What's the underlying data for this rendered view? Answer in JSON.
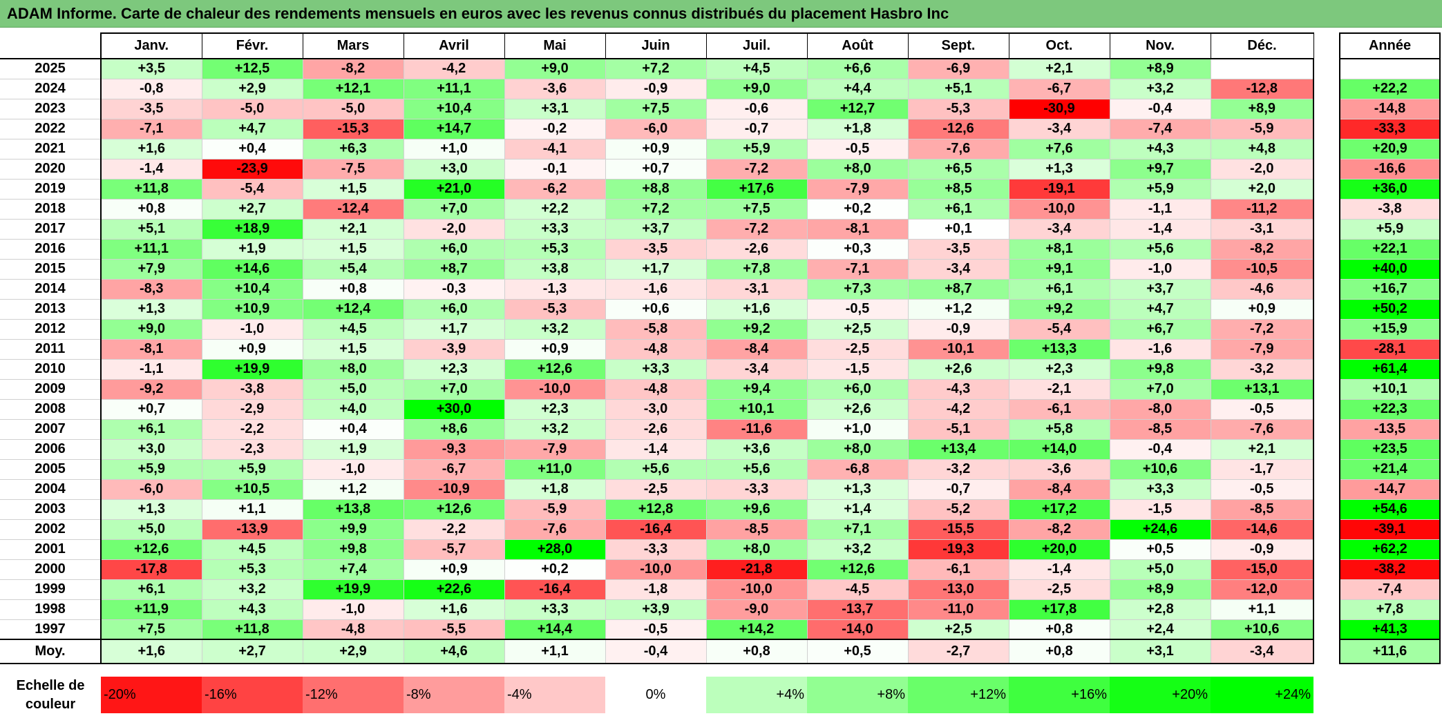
{
  "title": "ADAM Informe. Carte de chaleur des rendements mensuels en euros avec les revenus connus distribués du placement Hasbro Inc",
  "chart_data": {
    "type": "heatmap",
    "months": [
      "Janv.",
      "Févr.",
      "Mars",
      "Avril",
      "Mai",
      "Juin",
      "Juil.",
      "Août",
      "Sept.",
      "Oct.",
      "Nov.",
      "Déc."
    ],
    "year_header": "Année",
    "avg_label": "Moy.",
    "rows": [
      {
        "year": "2025",
        "values": [
          "+3,5",
          "+12,5",
          "-8,2",
          "-4,2",
          "+9,0",
          "+7,2",
          "+4,5",
          "+6,6",
          "-6,9",
          "+2,1",
          "+8,9",
          ""
        ],
        "annual": ""
      },
      {
        "year": "2024",
        "values": [
          "-0,8",
          "+2,9",
          "+12,1",
          "+11,1",
          "-3,6",
          "-0,9",
          "+9,0",
          "+4,4",
          "+5,1",
          "-6,7",
          "+3,2",
          "-12,8"
        ],
        "annual": "+22,2"
      },
      {
        "year": "2023",
        "values": [
          "-3,5",
          "-5,0",
          "-5,0",
          "+10,4",
          "+3,1",
          "+7,5",
          "-0,6",
          "+12,7",
          "-5,3",
          "-30,9",
          "-0,4",
          "+8,9"
        ],
        "annual": "-14,8"
      },
      {
        "year": "2022",
        "values": [
          "-7,1",
          "+4,7",
          "-15,3",
          "+14,7",
          "-0,2",
          "-6,0",
          "-0,7",
          "+1,8",
          "-12,6",
          "-3,4",
          "-7,4",
          "-5,9"
        ],
        "annual": "-33,3"
      },
      {
        "year": "2021",
        "values": [
          "+1,6",
          "+0,4",
          "+6,3",
          "+1,0",
          "-4,1",
          "+0,9",
          "+5,9",
          "-0,5",
          "-7,6",
          "+7,6",
          "+4,3",
          "+4,8"
        ],
        "annual": "+20,9"
      },
      {
        "year": "2020",
        "values": [
          "-1,4",
          "-23,9",
          "-7,5",
          "+3,0",
          "-0,1",
          "+0,7",
          "-7,2",
          "+8,0",
          "+6,5",
          "+1,3",
          "+9,7",
          "-2,0"
        ],
        "annual": "-16,6"
      },
      {
        "year": "2019",
        "values": [
          "+11,8",
          "-5,4",
          "+1,5",
          "+21,0",
          "-6,2",
          "+8,8",
          "+17,6",
          "-7,9",
          "+8,5",
          "-19,1",
          "+5,9",
          "+2,0"
        ],
        "annual": "+36,0"
      },
      {
        "year": "2018",
        "values": [
          "+0,8",
          "+2,7",
          "-12,4",
          "+7,0",
          "+2,2",
          "+7,2",
          "+7,5",
          "+0,2",
          "+6,1",
          "-10,0",
          "-1,1",
          "-11,2"
        ],
        "annual": "-3,8"
      },
      {
        "year": "2017",
        "values": [
          "+5,1",
          "+18,9",
          "+2,1",
          "-2,0",
          "+3,3",
          "+3,7",
          "-7,2",
          "-8,1",
          "+0,1",
          "-3,4",
          "-1,4",
          "-3,1"
        ],
        "annual": "+5,9"
      },
      {
        "year": "2016",
        "values": [
          "+11,1",
          "+1,9",
          "+1,5",
          "+6,0",
          "+5,3",
          "-3,5",
          "-2,6",
          "+0,3",
          "-3,5",
          "+8,1",
          "+5,6",
          "-8,2"
        ],
        "annual": "+22,1"
      },
      {
        "year": "2015",
        "values": [
          "+7,9",
          "+14,6",
          "+5,4",
          "+8,7",
          "+3,8",
          "+1,7",
          "+7,8",
          "-7,1",
          "-3,4",
          "+9,1",
          "-1,0",
          "-10,5"
        ],
        "annual": "+40,0"
      },
      {
        "year": "2014",
        "values": [
          "-8,3",
          "+10,4",
          "+0,8",
          "-0,3",
          "-1,3",
          "-1,6",
          "-3,1",
          "+7,3",
          "+8,7",
          "+6,1",
          "+3,7",
          "-4,6"
        ],
        "annual": "+16,7"
      },
      {
        "year": "2013",
        "values": [
          "+1,3",
          "+10,9",
          "+12,4",
          "+6,0",
          "-5,3",
          "+0,6",
          "+1,6",
          "-0,5",
          "+1,2",
          "+9,2",
          "+4,7",
          "+0,9"
        ],
        "annual": "+50,2"
      },
      {
        "year": "2012",
        "values": [
          "+9,0",
          "-1,0",
          "+4,5",
          "+1,7",
          "+3,2",
          "-5,8",
          "+9,2",
          "+2,5",
          "-0,9",
          "-5,4",
          "+6,7",
          "-7,2"
        ],
        "annual": "+15,9"
      },
      {
        "year": "2011",
        "values": [
          "-8,1",
          "+0,9",
          "+1,5",
          "-3,9",
          "+0,9",
          "-4,8",
          "-8,4",
          "-2,5",
          "-10,1",
          "+13,3",
          "-1,6",
          "-7,9"
        ],
        "annual": "-28,1"
      },
      {
        "year": "2010",
        "values": [
          "-1,1",
          "+19,9",
          "+8,0",
          "+2,3",
          "+12,6",
          "+3,3",
          "-3,4",
          "-1,5",
          "+2,6",
          "+2,3",
          "+9,8",
          "-3,2"
        ],
        "annual": "+61,4"
      },
      {
        "year": "2009",
        "values": [
          "-9,2",
          "-3,8",
          "+5,0",
          "+7,0",
          "-10,0",
          "-4,8",
          "+9,4",
          "+6,0",
          "-4,3",
          "-2,1",
          "+7,0",
          "+13,1"
        ],
        "annual": "+10,1"
      },
      {
        "year": "2008",
        "values": [
          "+0,7",
          "-2,9",
          "+4,0",
          "+30,0",
          "+2,3",
          "-3,0",
          "+10,1",
          "+2,6",
          "-4,2",
          "-6,1",
          "-8,0",
          "-0,5"
        ],
        "annual": "+22,3"
      },
      {
        "year": "2007",
        "values": [
          "+6,1",
          "-2,2",
          "+0,4",
          "+8,6",
          "+3,2",
          "-2,6",
          "-11,6",
          "+1,0",
          "-5,1",
          "+5,8",
          "-8,5",
          "-7,6"
        ],
        "annual": "-13,5"
      },
      {
        "year": "2006",
        "values": [
          "+3,0",
          "-2,3",
          "+1,9",
          "-9,3",
          "-7,9",
          "-1,4",
          "+3,6",
          "+8,0",
          "+13,4",
          "+14,0",
          "-0,4",
          "+2,1"
        ],
        "annual": "+23,5"
      },
      {
        "year": "2005",
        "values": [
          "+5,9",
          "+5,9",
          "-1,0",
          "-6,7",
          "+11,0",
          "+5,6",
          "+5,6",
          "-6,8",
          "-3,2",
          "-3,6",
          "+10,6",
          "-1,7"
        ],
        "annual": "+21,4"
      },
      {
        "year": "2004",
        "values": [
          "-6,0",
          "+10,5",
          "+1,2",
          "-10,9",
          "+1,8",
          "-2,5",
          "-3,3",
          "+1,3",
          "-0,7",
          "-8,4",
          "+3,3",
          "-0,5"
        ],
        "annual": "-14,7"
      },
      {
        "year": "2003",
        "values": [
          "+1,3",
          "+1,1",
          "+13,8",
          "+12,6",
          "-5,9",
          "+12,8",
          "+9,6",
          "+1,4",
          "-5,2",
          "+17,2",
          "-1,5",
          "-8,5"
        ],
        "annual": "+54,6"
      },
      {
        "year": "2002",
        "values": [
          "+5,0",
          "-13,9",
          "+9,9",
          "-2,2",
          "-7,6",
          "-16,4",
          "-8,5",
          "+7,1",
          "-15,5",
          "-8,2",
          "+24,6",
          "-14,6"
        ],
        "annual": "-39,1"
      },
      {
        "year": "2001",
        "values": [
          "+12,6",
          "+4,5",
          "+9,8",
          "-5,7",
          "+28,0",
          "-3,3",
          "+8,0",
          "+3,2",
          "-19,3",
          "+20,0",
          "+0,5",
          "-0,9"
        ],
        "annual": "+62,2"
      },
      {
        "year": "2000",
        "values": [
          "-17,8",
          "+5,3",
          "+7,4",
          "+0,9",
          "+0,2",
          "-10,0",
          "-21,8",
          "+12,6",
          "-6,1",
          "-1,4",
          "+5,0",
          "-15,0"
        ],
        "annual": "-38,2"
      },
      {
        "year": "1999",
        "values": [
          "+6,1",
          "+3,2",
          "+19,9",
          "+22,6",
          "-16,4",
          "-1,8",
          "-10,0",
          "-4,5",
          "-13,0",
          "-2,5",
          "+8,9",
          "-12,0"
        ],
        "annual": "-7,4"
      },
      {
        "year": "1998",
        "values": [
          "+11,9",
          "+4,3",
          "-1,0",
          "+1,6",
          "+3,3",
          "+3,9",
          "-9,0",
          "-13,7",
          "-11,0",
          "+17,8",
          "+2,8",
          "+1,1"
        ],
        "annual": "+7,8"
      },
      {
        "year": "1997",
        "values": [
          "+7,5",
          "+11,8",
          "-4,8",
          "-5,5",
          "+14,4",
          "-0,5",
          "+14,2",
          "-14,0",
          "+2,5",
          "+0,8",
          "+2,4",
          "+10,6"
        ],
        "annual": "+41,3"
      }
    ],
    "average": {
      "values": [
        "+1,6",
        "+2,7",
        "+2,9",
        "+4,6",
        "+1,1",
        "-0,4",
        "+0,8",
        "+0,5",
        "-2,7",
        "+0,8",
        "+3,1",
        "-3,4"
      ],
      "annual": "+11,6"
    },
    "scale_label": "Echelle de couleur",
    "scale": [
      "-20%",
      "-16%",
      "-12%",
      "-8%",
      "-4%",
      "0%",
      "+4%",
      "+8%",
      "+12%",
      "+16%",
      "+20%",
      "+24%"
    ],
    "colors": {
      "negative_max": "#ff0000",
      "positive_max": "#00ff00",
      "neutral": "#ffffff"
    }
  }
}
